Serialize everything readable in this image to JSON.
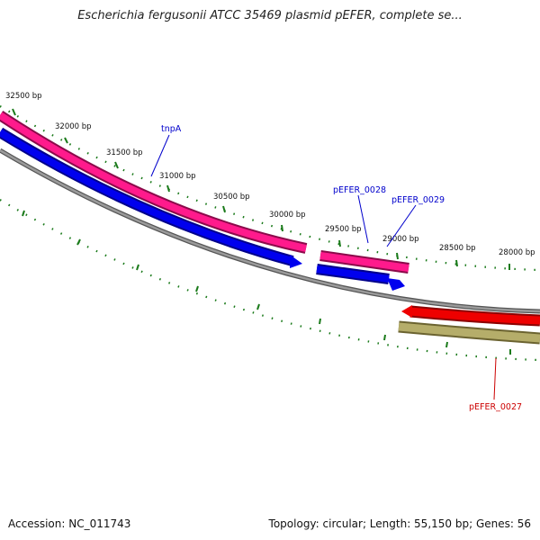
{
  "title": "Escherichia fergusonii ATCC 35469 plasmid pEFER, complete se...",
  "tick_labels": [
    "32500 bp",
    "32000 bp",
    "31500 bp",
    "31000 bp",
    "30500 bp",
    "30000 bp",
    "29500 bp",
    "29000 bp",
    "28500 bp",
    "28000 bp"
  ],
  "genes": [
    {
      "name": "tnpA",
      "color": "#0000cc"
    },
    {
      "name": "pEFER_0028",
      "color": "#0000cc"
    },
    {
      "name": "pEFER_0029",
      "color": "#0000cc"
    },
    {
      "name": "pEFER_0027",
      "color": "#cc0000"
    }
  ],
  "colors": {
    "pink_track": "#ff1a8c",
    "blue_track": "#0000ee",
    "backbone": "#808080",
    "red_track": "#ee0000",
    "olive_track": "#b5ad6a",
    "tick_marks": "#1a7a1a"
  },
  "footer": {
    "accession": "Accession: NC_011743",
    "summary": "Topology: circular; Length: 55,150 bp; Genes: 56"
  }
}
